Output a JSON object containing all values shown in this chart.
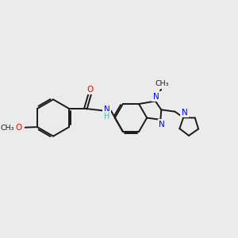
{
  "bg_color": "#ebebeb",
  "bond_color": "#1a1a1a",
  "nitrogen_color": "#0000ff",
  "oxygen_color": "#ff0000",
  "nh_color": "#4db8b8",
  "bond_width": 1.4,
  "figsize": [
    3.0,
    3.0
  ],
  "dpi": 100,
  "xlim": [
    0,
    10
  ],
  "ylim": [
    0,
    10
  ]
}
